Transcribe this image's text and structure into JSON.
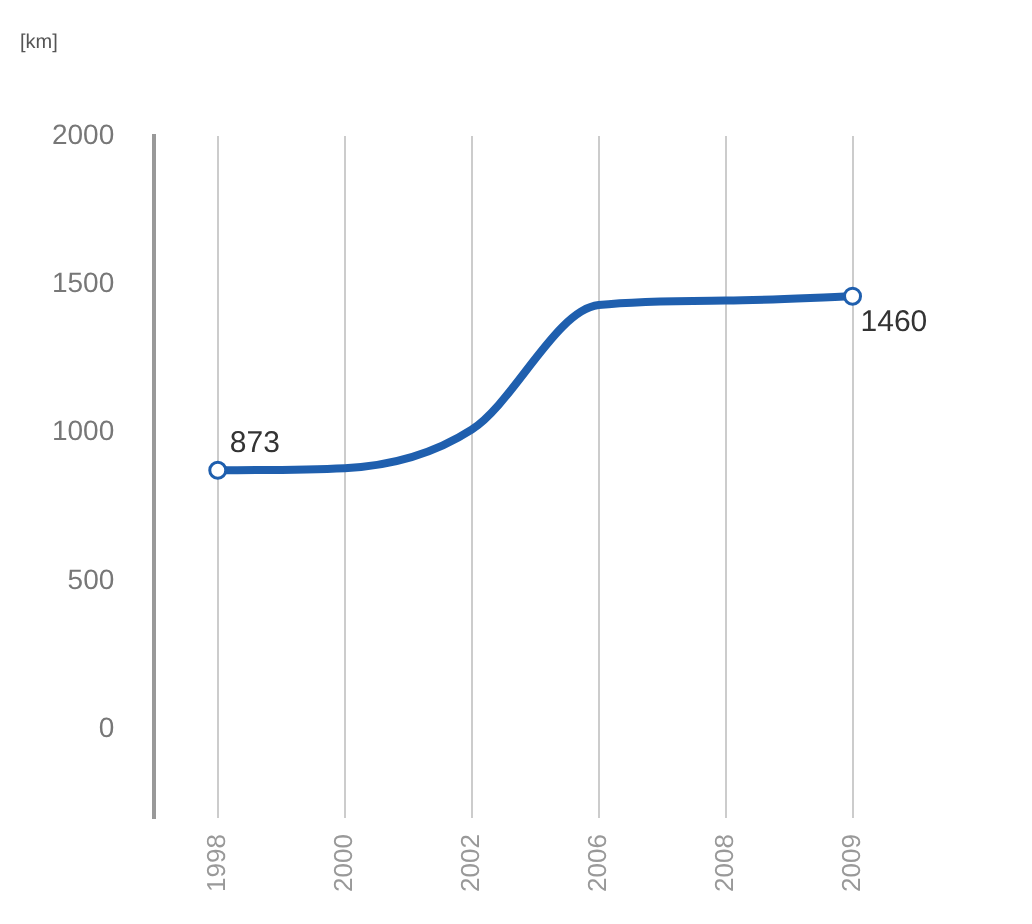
{
  "chart_data": {
    "type": "line",
    "ylabel": "[km]",
    "categories": [
      "1998",
      "2000",
      "2002",
      "2006",
      "2008",
      "2009"
    ],
    "series": [
      {
        "color": "#1f5fae",
        "values": [
          873,
          880,
          1010,
          1430,
          1445,
          1460
        ],
        "marker": "none"
      },
      {
        "type": "scatter",
        "color": "#1f5fae",
        "values": [
          873,
          null,
          null,
          null,
          null,
          1460
        ],
        "marker": "circle",
        "value_labels": [
          "873",
          null,
          null,
          null,
          null,
          "1460"
        ]
      }
    ],
    "ylim": [
      -300,
      2000
    ],
    "yticks": [
      0,
      500,
      1000,
      1500,
      2000
    ],
    "grid": "x",
    "legend": false,
    "line_style": "solid"
  }
}
